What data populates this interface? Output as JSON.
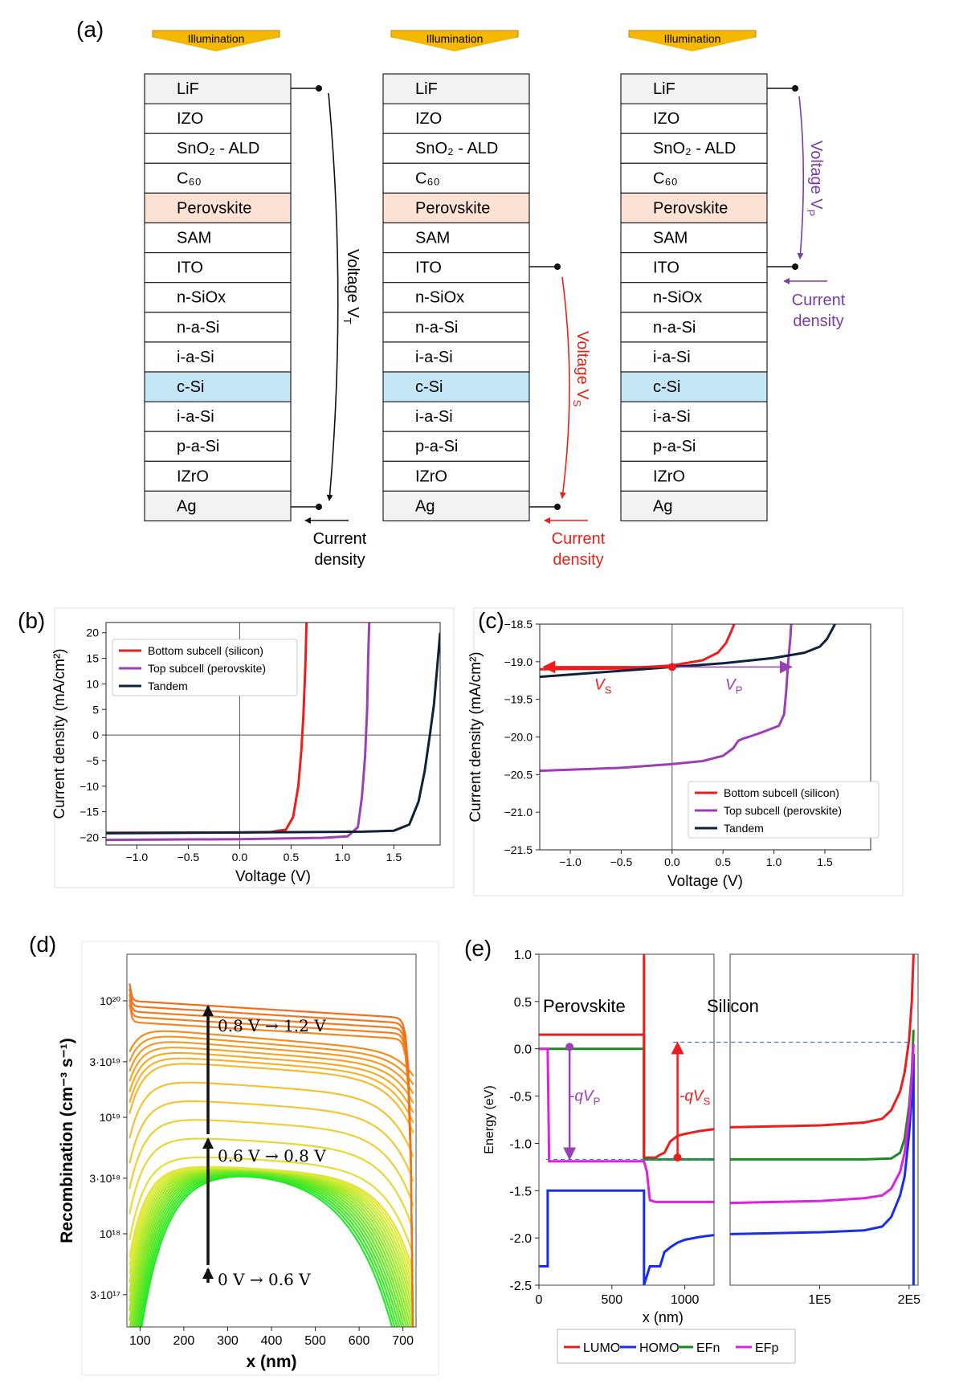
{
  "panel_labels": {
    "a": "(a)",
    "b": "(b)",
    "c": "(c)",
    "d": "(d)",
    "e": "(e)"
  },
  "panel_a": {
    "illumination_label": "Illumination",
    "layers": [
      {
        "text": "LiF",
        "fill": "#f2f2f2"
      },
      {
        "text": "IZO",
        "fill": "#ffffff"
      },
      {
        "text": "SnO₂ - ALD",
        "fill": "#ffffff"
      },
      {
        "text": "C₆₀",
        "fill": "#ffffff"
      },
      {
        "text": "Perovskite",
        "fill": "#fbe2d5"
      },
      {
        "text": "SAM",
        "fill": "#ffffff"
      },
      {
        "text": "ITO",
        "fill": "#ffffff"
      },
      {
        "text": "n-SiOx",
        "fill": "#ffffff"
      },
      {
        "text": "n-a-Si",
        "fill": "#ffffff"
      },
      {
        "text": "i-a-Si",
        "fill": "#ffffff"
      },
      {
        "text": "c-Si",
        "fill": "#c5e6f4"
      },
      {
        "text": "i-a-Si",
        "fill": "#ffffff"
      },
      {
        "text": "p-a-Si",
        "fill": "#ffffff"
      },
      {
        "text": "IZrO",
        "fill": "#ffffff"
      },
      {
        "text": "Ag",
        "fill": "#f2f2f2"
      }
    ],
    "voltage_t": "Voltage V",
    "voltage_t_sub": "T",
    "voltage_s": "Voltage V",
    "voltage_s_sub": "S",
    "voltage_p": "Voltage V",
    "voltage_p_sub": "P",
    "current_line1": "Current",
    "current_line2": "density",
    "colors": {
      "tandem": "#111111",
      "silicon": "#e8201a",
      "perovskite": "#7b3aa6",
      "arrow_fill": "#f5b800"
    }
  },
  "chart_data": [
    {
      "panel": "b",
      "type": "line",
      "xlabel": "Voltage (V)",
      "ylabel": "Current density (mA/cm²)",
      "xlim": [
        -1.3,
        1.95
      ],
      "ylim": [
        -21.5,
        22
      ],
      "xticks": [
        -1.0,
        -0.5,
        0.0,
        0.5,
        1.0,
        1.5
      ],
      "xtick_labels": [
        "−1.0",
        "−0.5",
        "0.0",
        "0.5",
        "1.0",
        "1.5"
      ],
      "yticks": [
        -20,
        -15,
        -10,
        -5,
        0,
        5,
        10,
        15,
        20
      ],
      "ytick_labels": [
        "−20",
        "−15",
        "−10",
        "−5",
        "0",
        "5",
        "10",
        "15",
        "20"
      ],
      "legend_position": "top-left",
      "series": [
        {
          "name": "Bottom subcell (silicon)",
          "color": "#ee1c1c",
          "x": [
            -1.3,
            0,
            0.3,
            0.45,
            0.52,
            0.57,
            0.6,
            0.62,
            0.64,
            0.65
          ],
          "y": [
            -19.1,
            -19.05,
            -18.95,
            -18.5,
            -16,
            -10,
            -3,
            4,
            14,
            22
          ]
        },
        {
          "name": "Top subcell (perovskite)",
          "color": "#9b3fb5",
          "x": [
            -1.3,
            0,
            0.8,
            1.05,
            1.15,
            1.19,
            1.22,
            1.24,
            1.25,
            1.26
          ],
          "y": [
            -20.5,
            -20.35,
            -20.1,
            -19.8,
            -18,
            -12,
            -4,
            5,
            15,
            22
          ]
        },
        {
          "name": "Tandem",
          "color": "#10223b",
          "x": [
            -1.3,
            0,
            1.2,
            1.5,
            1.65,
            1.74,
            1.8,
            1.85,
            1.89,
            1.92,
            1.95
          ],
          "y": [
            -19.2,
            -19.05,
            -18.9,
            -18.7,
            -17.5,
            -13,
            -7,
            0,
            6,
            13,
            20
          ]
        }
      ]
    },
    {
      "panel": "c",
      "type": "line",
      "xlabel": "Voltage (V)",
      "ylabel": "Current density (mA/cm²)",
      "xlim": [
        -1.3,
        1.95
      ],
      "ylim": [
        -21.5,
        -18.5
      ],
      "xticks": [
        -1.0,
        -0.5,
        0.0,
        0.5,
        1.0,
        1.5
      ],
      "xtick_labels": [
        "−1.0",
        "−0.5",
        "0.0",
        "0.5",
        "1.0",
        "1.5"
      ],
      "yticks": [
        -21.5,
        -21.0,
        -20.5,
        -20.0,
        -19.5,
        -19.0,
        -18.5
      ],
      "ytick_labels": [
        "−21.5",
        "−21.0",
        "−20.5",
        "−20.0",
        "−19.5",
        "−19.0",
        "−18.5"
      ],
      "legend_position": "bottom-right",
      "annotations": {
        "vs_label": "V",
        "vs_sub": "S",
        "vp_label": "V",
        "vp_sub": "P",
        "operating_point": {
          "x": 0.0,
          "y": -19.07
        },
        "vs_end_x": -1.25,
        "vp_end_x": 1.16
      },
      "series": [
        {
          "name": "Bottom subcell (silicon)",
          "color": "#ee1c1c",
          "x": [
            -1.3,
            -0.5,
            0,
            0.3,
            0.45,
            0.53,
            0.58,
            0.61
          ],
          "y": [
            -19.1,
            -19.09,
            -19.05,
            -18.98,
            -18.88,
            -18.75,
            -18.6,
            -18.5
          ]
        },
        {
          "name": "Top subcell (perovskite)",
          "color": "#9b3fb5",
          "x": [
            -1.3,
            -0.5,
            0,
            0.3,
            0.5,
            0.6,
            0.65,
            0.7,
            0.75,
            0.9,
            1.05,
            1.1,
            1.12,
            1.14,
            1.16,
            1.17
          ],
          "y": [
            -20.45,
            -20.41,
            -20.36,
            -20.32,
            -20.25,
            -20.15,
            -20.05,
            -20.02,
            -20.0,
            -19.93,
            -19.85,
            -19.7,
            -19.4,
            -19.0,
            -18.7,
            -18.5
          ]
        },
        {
          "name": "Tandem",
          "color": "#10223b",
          "x": [
            -1.3,
            -0.5,
            0,
            0.5,
            1.0,
            1.3,
            1.45,
            1.52,
            1.56,
            1.6
          ],
          "y": [
            -19.2,
            -19.12,
            -19.07,
            -19.02,
            -18.95,
            -18.88,
            -18.8,
            -18.7,
            -18.6,
            -18.5
          ]
        }
      ]
    },
    {
      "panel": "d",
      "type": "line",
      "xlabel": "x (nm)",
      "ylabel": "Recombination (cm⁻³ s⁻¹)",
      "xlim": [
        70,
        730
      ],
      "ylim_log10": [
        17.2,
        20.4
      ],
      "xticks": [
        100,
        200,
        300,
        400,
        500,
        600,
        700
      ],
      "ytick_labels": [
        "10²⁰",
        "3·10¹⁹",
        "10¹⁹",
        "3·10¹⁸",
        "10¹⁸",
        "3·10¹⁷"
      ],
      "ytick_log10": [
        20.0,
        19.477,
        19.0,
        18.477,
        18.0,
        17.477
      ],
      "annotations": [
        "0.8 V → 1.2 V",
        "0.6 V → 0.8 V",
        "0 V → 0.6 V"
      ],
      "voltage_sweep": {
        "v_start": 0.0,
        "v_end": 1.2,
        "curve_count": 34,
        "plateau_log10_at_0V": 18.57,
        "plateau_log10_at_1p2V": 20.0
      }
    },
    {
      "panel": "e",
      "type": "line",
      "xlabel": "x (nm)",
      "ylabel": "Energy (eV)",
      "ylim": [
        -2.5,
        1.0
      ],
      "yticks": [
        1.0,
        0.5,
        0.0,
        -0.5,
        -1.0,
        -1.5,
        -2.0,
        -2.5
      ],
      "ytick_labels": [
        "1.0",
        "0.5",
        "0.0",
        "-0.5",
        "-1.0",
        "-1.5",
        "-2.0",
        "-2.5"
      ],
      "left_xlim": [
        0,
        1200
      ],
      "left_xticks": [
        0,
        500,
        1000
      ],
      "left_xtick_labels": [
        "0",
        "500",
        "1000"
      ],
      "right_xlim": [
        0,
        210000
      ],
      "right_xticks": [
        100000,
        200000
      ],
      "right_xtick_labels": [
        "1E5",
        "2E5"
      ],
      "region_labels": [
        "Perovskite",
        "Silicon"
      ],
      "annotations": {
        "qvp": "-qV",
        "qvp_sub": "P",
        "qvs": "-qV",
        "qvs_sub": "S"
      },
      "legend_position": "bottom",
      "series": [
        {
          "name": "LUMO",
          "color": "#ee1c1c",
          "left": {
            "x": [
              0,
              60,
              60,
              720,
              720,
              760,
              800,
              830,
              860,
              900,
              950,
              1000,
              1100,
              1200
            ],
            "y": [
              0.15,
              0.15,
              0.15,
              0.15,
              -1.15,
              -1.15,
              -1.15,
              -1.12,
              -1.1,
              -0.98,
              -0.92,
              -0.9,
              -0.87,
              -0.85
            ]
          },
          "right": {
            "x": [
              0,
              50000,
              100000,
              150000,
              170000,
              180000,
              190000,
              195000,
              200000,
              203000,
              205000
            ],
            "y": [
              -0.83,
              -0.82,
              -0.81,
              -0.78,
              -0.74,
              -0.65,
              -0.45,
              -0.25,
              0.1,
              0.5,
              1.0
            ]
          }
        },
        {
          "name": "HOMO",
          "color": "#1a2ee8",
          "left": {
            "x": [
              0,
              60,
              60,
              70,
              720,
              720,
              760,
              800,
              830,
              860,
              900,
              950,
              1000,
              1100,
              1200
            ],
            "y": [
              -2.3,
              -2.3,
              -1.5,
              -1.5,
              -1.5,
              -2.5,
              -2.3,
              -2.3,
              -2.3,
              -2.15,
              -2.1,
              -2.05,
              -2.02,
              -1.99,
              -1.97
            ]
          },
          "right": {
            "x": [
              0,
              50000,
              100000,
              150000,
              170000,
              180000,
              190000,
              195000,
              200000,
              203000,
              205000,
              205000
            ],
            "y": [
              -1.96,
              -1.95,
              -1.94,
              -1.92,
              -1.88,
              -1.78,
              -1.55,
              -1.35,
              -0.9,
              -0.5,
              -0.05,
              -2.5
            ]
          }
        },
        {
          "name": "EFn",
          "color": "#1a8a22",
          "left": {
            "x": [
              0,
              720,
              720,
              760,
              1200
            ],
            "y": [
              0.0,
              0.0,
              -1.17,
              -1.17,
              -1.17
            ]
          },
          "right": {
            "x": [
              0,
              50000,
              100000,
              150000,
              180000,
              190000,
              195000,
              200000,
              203000,
              205000
            ],
            "y": [
              -1.17,
              -1.17,
              -1.17,
              -1.17,
              -1.16,
              -1.1,
              -0.95,
              -0.6,
              -0.25,
              0.2
            ]
          }
        },
        {
          "name": "EFp",
          "color": "#e020e0",
          "left": {
            "x": [
              0,
              60,
              70,
              720,
              740,
              760,
              800,
              830,
              860,
              1200
            ],
            "y": [
              0.0,
              0.0,
              -1.19,
              -1.19,
              -1.3,
              -1.6,
              -1.62,
              -1.62,
              -1.62,
              -1.62
            ]
          },
          "right": {
            "x": [
              0,
              50000,
              100000,
              150000,
              170000,
              180000,
              190000,
              195000,
              200000,
              203000,
              205000
            ],
            "y": [
              -1.63,
              -1.62,
              -1.61,
              -1.58,
              -1.55,
              -1.48,
              -1.3,
              -1.1,
              -0.7,
              -0.3,
              0.05
            ]
          }
        }
      ]
    }
  ]
}
